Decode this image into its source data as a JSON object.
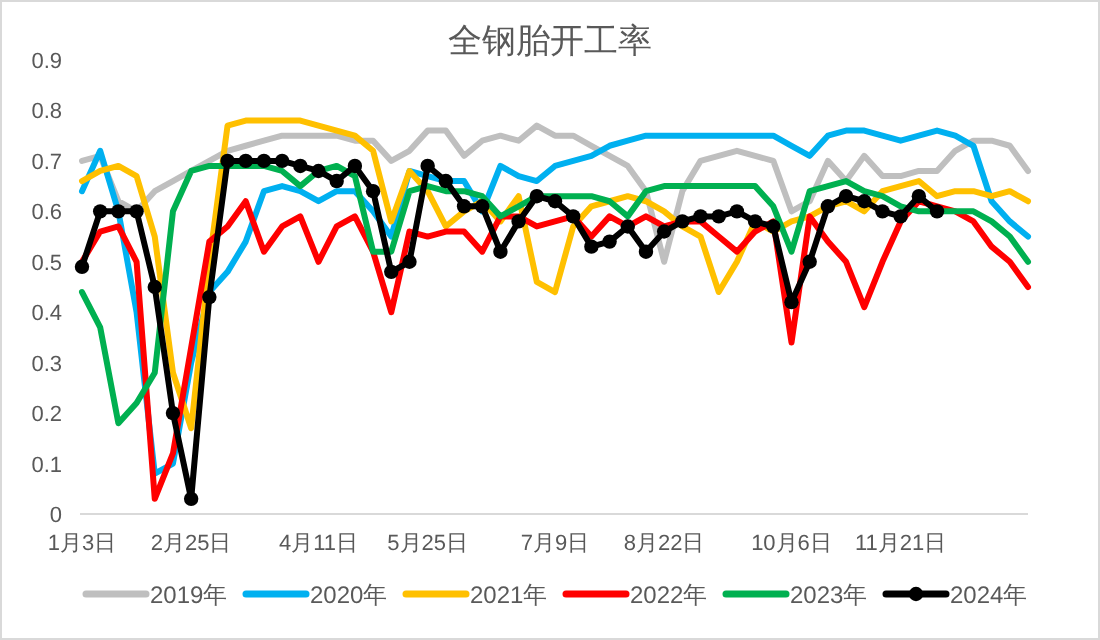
{
  "chart_data": {
    "type": "line",
    "title": "全钢胎开工率",
    "categories": [
      "1月3日",
      null,
      null,
      null,
      null,
      null,
      "2月25日",
      null,
      null,
      null,
      null,
      null,
      null,
      "4月11日",
      null,
      null,
      null,
      null,
      null,
      "5月25日",
      null,
      null,
      null,
      null,
      null,
      null,
      "7月9日",
      null,
      null,
      null,
      null,
      null,
      "8月22日",
      null,
      null,
      null,
      null,
      null,
      null,
      "10月6日",
      null,
      null,
      null,
      null,
      null,
      "11月21日",
      null,
      null,
      null,
      null,
      null,
      null,
      null
    ],
    "ylim": [
      0,
      0.9
    ],
    "yticks": [
      0,
      0.1,
      0.2,
      0.3,
      0.4,
      0.5,
      0.6,
      0.7,
      0.8,
      0.9
    ],
    "legend": "bottom",
    "series": [
      {
        "name": "2019年",
        "color": "#bfbfbf",
        "values": [
          0.7,
          0.71,
          0.62,
          0.6,
          0.64,
          0.66,
          0.68,
          0.7,
          0.72,
          0.73,
          0.74,
          0.75,
          0.75,
          0.75,
          0.75,
          0.74,
          0.74,
          0.7,
          0.72,
          0.76,
          0.76,
          0.71,
          0.74,
          0.75,
          0.74,
          0.77,
          0.75,
          0.75,
          0.73,
          0.71,
          0.69,
          0.64,
          0.5,
          0.64,
          0.7,
          0.71,
          0.72,
          0.71,
          0.7,
          0.6,
          0.62,
          0.7,
          0.66,
          0.71,
          0.67,
          0.67,
          0.68,
          0.68,
          0.72,
          0.74,
          0.74,
          0.73,
          0.68
        ]
      },
      {
        "name": "2020年",
        "color": "#00b0f0",
        "values": [
          0.64,
          0.72,
          0.6,
          0.4,
          0.08,
          0.1,
          0.3,
          0.44,
          0.48,
          0.54,
          0.64,
          0.65,
          0.64,
          0.62,
          0.64,
          0.64,
          0.6,
          0.55,
          0.68,
          0.67,
          0.66,
          0.66,
          0.6,
          0.69,
          0.67,
          0.66,
          0.69,
          0.7,
          0.71,
          0.73,
          0.74,
          0.75,
          0.75,
          0.75,
          0.75,
          0.75,
          0.75,
          0.75,
          0.75,
          0.73,
          0.71,
          0.75,
          0.76,
          0.76,
          0.75,
          0.74,
          0.75,
          0.76,
          0.75,
          0.73,
          0.62,
          0.58,
          0.55
        ]
      },
      {
        "name": "2021年",
        "color": "#ffc000",
        "values": [
          0.66,
          0.68,
          0.69,
          0.67,
          0.55,
          0.28,
          0.17,
          0.5,
          0.77,
          0.78,
          0.78,
          0.78,
          0.78,
          0.77,
          0.76,
          0.75,
          0.72,
          0.58,
          0.68,
          0.64,
          0.57,
          0.6,
          0.62,
          0.58,
          0.63,
          0.46,
          0.44,
          0.57,
          0.61,
          0.62,
          0.63,
          0.62,
          0.6,
          0.57,
          0.55,
          0.44,
          0.5,
          0.58,
          0.56,
          0.58,
          0.59,
          0.61,
          0.62,
          0.6,
          0.64,
          0.65,
          0.66,
          0.63,
          0.64,
          0.64,
          0.63,
          0.64,
          0.62
        ]
      },
      {
        "name": "2022年",
        "color": "#ff0000",
        "values": [
          0.5,
          0.56,
          0.57,
          0.5,
          0.03,
          0.12,
          0.33,
          0.54,
          0.57,
          0.62,
          0.52,
          0.57,
          0.59,
          0.5,
          0.57,
          0.59,
          0.52,
          0.4,
          0.56,
          0.55,
          0.56,
          0.56,
          0.52,
          0.59,
          0.59,
          0.57,
          0.58,
          0.59,
          0.55,
          0.59,
          0.57,
          0.59,
          0.57,
          0.58,
          0.58,
          0.55,
          0.52,
          0.56,
          0.58,
          0.34,
          0.59,
          0.54,
          0.5,
          0.41,
          0.5,
          0.58,
          0.62,
          0.61,
          0.6,
          0.58,
          0.53,
          0.5,
          0.45
        ]
      },
      {
        "name": "2023年",
        "color": "#00b050",
        "values": [
          0.44,
          0.37,
          0.18,
          0.22,
          0.28,
          0.6,
          0.68,
          0.69,
          0.69,
          0.69,
          0.69,
          0.68,
          0.65,
          0.68,
          0.69,
          0.67,
          0.52,
          0.52,
          0.64,
          0.65,
          0.64,
          0.64,
          0.63,
          0.59,
          0.61,
          0.63,
          0.63,
          0.63,
          0.63,
          0.62,
          0.59,
          0.64,
          0.65,
          0.65,
          0.65,
          0.65,
          0.65,
          0.65,
          0.61,
          0.52,
          0.64,
          0.65,
          0.66,
          0.64,
          0.63,
          0.61,
          0.6,
          0.6,
          0.6,
          0.6,
          0.58,
          0.55,
          0.5
        ]
      },
      {
        "name": "2024年",
        "color": "#000000",
        "marker": "circle",
        "values": [
          0.49,
          0.6,
          0.6,
          0.6,
          0.45,
          0.2,
          0.03,
          0.43,
          0.7,
          0.7,
          0.7,
          0.7,
          0.69,
          0.68,
          0.66,
          0.69,
          0.64,
          0.48,
          0.5,
          0.69,
          0.66,
          0.61,
          0.61,
          0.52,
          0.58,
          0.63,
          0.62,
          0.59,
          0.53,
          0.54,
          0.57,
          0.52,
          0.56,
          0.58,
          0.59,
          0.59,
          0.6,
          0.58,
          0.57,
          0.42,
          0.5,
          0.61,
          0.63,
          0.62,
          0.6,
          0.59,
          0.63,
          0.6,
          null,
          null,
          null,
          null,
          null
        ]
      }
    ]
  }
}
